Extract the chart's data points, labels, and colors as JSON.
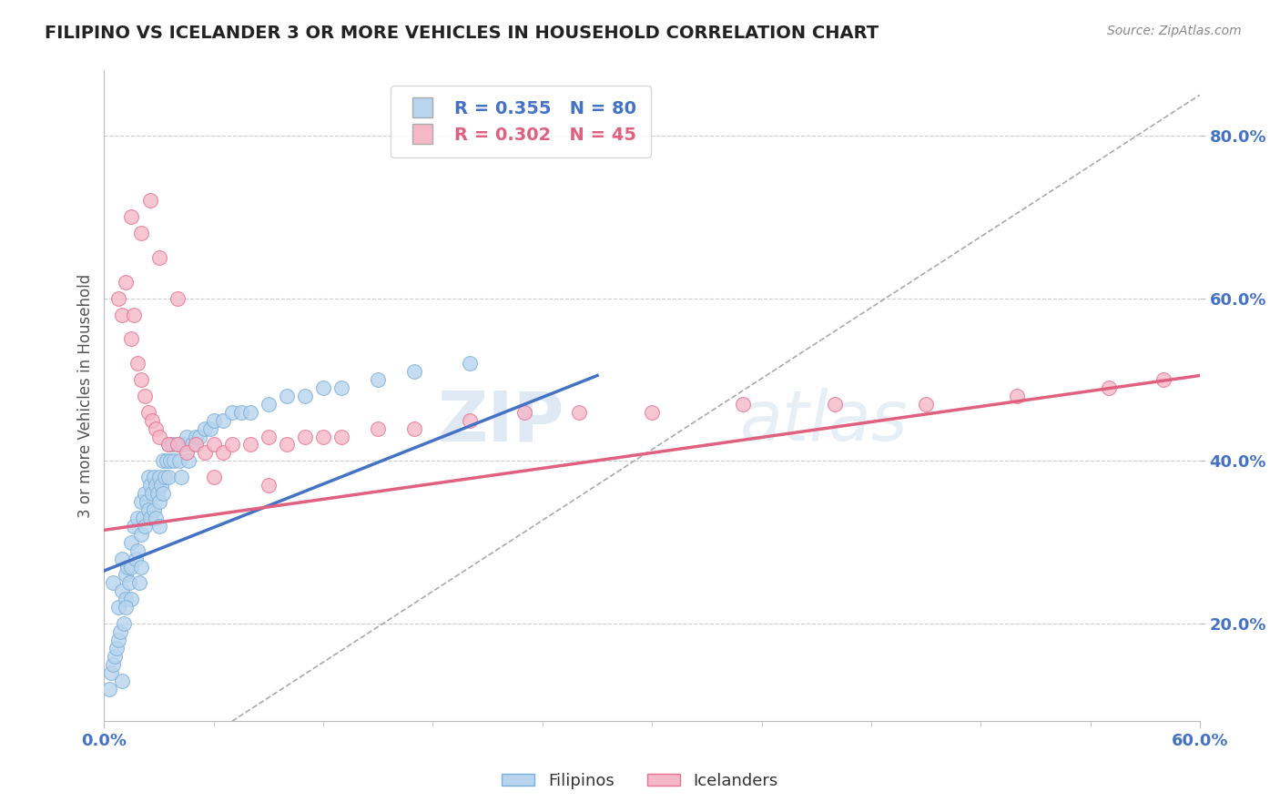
{
  "title": "FILIPINO VS ICELANDER 3 OR MORE VEHICLES IN HOUSEHOLD CORRELATION CHART",
  "source": "Source: ZipAtlas.com",
  "ylabel": "3 or more Vehicles in Household",
  "ylabel_ticks": [
    0.2,
    0.4,
    0.6,
    0.8
  ],
  "ylabel_tick_labels": [
    "20.0%",
    "40.0%",
    "60.0%",
    "80.0%"
  ],
  "xmin": 0.0,
  "xmax": 0.6,
  "ymin": 0.08,
  "ymax": 0.88,
  "legend_entry1": "R = 0.355   N = 80",
  "legend_entry2": "R = 0.302   N = 45",
  "legend_color1": "#b8d4ee",
  "legend_color2": "#f4b8c8",
  "dot_color_filipino": "#b8d4ee",
  "dot_color_icelander": "#f4b8c8",
  "dot_edge_filipino": "#7ab0d8",
  "dot_edge_icelander": "#e87090",
  "line_color_filipino": "#4472c4",
  "line_color_icelander": "#e06080",
  "watermark_zip": "ZIP",
  "watermark_atlas": "atlas",
  "filipino_x": [
    0.005,
    0.008,
    0.01,
    0.01,
    0.012,
    0.012,
    0.013,
    0.014,
    0.015,
    0.015,
    0.015,
    0.016,
    0.017,
    0.018,
    0.018,
    0.019,
    0.02,
    0.02,
    0.02,
    0.021,
    0.022,
    0.022,
    0.023,
    0.024,
    0.024,
    0.025,
    0.025,
    0.026,
    0.027,
    0.027,
    0.028,
    0.028,
    0.029,
    0.03,
    0.03,
    0.03,
    0.031,
    0.032,
    0.032,
    0.033,
    0.034,
    0.035,
    0.035,
    0.036,
    0.037,
    0.038,
    0.04,
    0.041,
    0.042,
    0.043,
    0.045,
    0.046,
    0.048,
    0.05,
    0.052,
    0.055,
    0.058,
    0.06,
    0.065,
    0.07,
    0.075,
    0.08,
    0.09,
    0.1,
    0.11,
    0.12,
    0.13,
    0.15,
    0.17,
    0.2,
    0.003,
    0.004,
    0.005,
    0.006,
    0.007,
    0.008,
    0.009,
    0.01,
    0.011,
    0.012
  ],
  "filipino_y": [
    0.25,
    0.22,
    0.28,
    0.24,
    0.26,
    0.23,
    0.27,
    0.25,
    0.3,
    0.27,
    0.23,
    0.32,
    0.28,
    0.33,
    0.29,
    0.25,
    0.35,
    0.31,
    0.27,
    0.33,
    0.36,
    0.32,
    0.35,
    0.38,
    0.34,
    0.37,
    0.33,
    0.36,
    0.38,
    0.34,
    0.37,
    0.33,
    0.36,
    0.38,
    0.35,
    0.32,
    0.37,
    0.4,
    0.36,
    0.38,
    0.4,
    0.42,
    0.38,
    0.4,
    0.42,
    0.4,
    0.42,
    0.4,
    0.38,
    0.42,
    0.43,
    0.4,
    0.42,
    0.43,
    0.43,
    0.44,
    0.44,
    0.45,
    0.45,
    0.46,
    0.46,
    0.46,
    0.47,
    0.48,
    0.48,
    0.49,
    0.49,
    0.5,
    0.51,
    0.52,
    0.12,
    0.14,
    0.15,
    0.16,
    0.17,
    0.18,
    0.19,
    0.13,
    0.2,
    0.22
  ],
  "icelander_x": [
    0.008,
    0.01,
    0.012,
    0.015,
    0.016,
    0.018,
    0.02,
    0.022,
    0.024,
    0.026,
    0.028,
    0.03,
    0.035,
    0.04,
    0.045,
    0.05,
    0.055,
    0.06,
    0.065,
    0.07,
    0.08,
    0.09,
    0.1,
    0.11,
    0.12,
    0.13,
    0.15,
    0.17,
    0.2,
    0.23,
    0.26,
    0.3,
    0.35,
    0.4,
    0.45,
    0.5,
    0.55,
    0.58,
    0.015,
    0.02,
    0.025,
    0.03,
    0.04,
    0.06,
    0.09
  ],
  "icelander_y": [
    0.6,
    0.58,
    0.62,
    0.55,
    0.58,
    0.52,
    0.5,
    0.48,
    0.46,
    0.45,
    0.44,
    0.43,
    0.42,
    0.42,
    0.41,
    0.42,
    0.41,
    0.42,
    0.41,
    0.42,
    0.42,
    0.43,
    0.42,
    0.43,
    0.43,
    0.43,
    0.44,
    0.44,
    0.45,
    0.46,
    0.46,
    0.46,
    0.47,
    0.47,
    0.47,
    0.48,
    0.49,
    0.5,
    0.7,
    0.68,
    0.72,
    0.65,
    0.6,
    0.38,
    0.37
  ],
  "fil_trend_x0": 0.0,
  "fil_trend_x1": 0.27,
  "fil_trend_y0": 0.265,
  "fil_trend_y1": 0.505,
  "ice_trend_x0": 0.0,
  "ice_trend_x1": 0.6,
  "ice_trend_y0": 0.315,
  "ice_trend_y1": 0.505
}
